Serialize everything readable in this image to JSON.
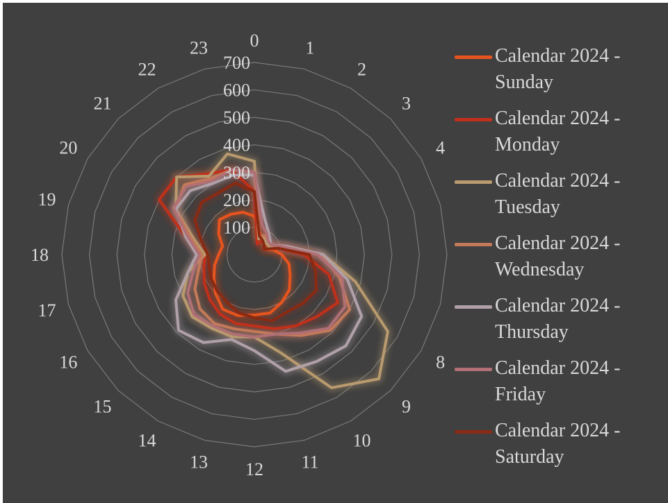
{
  "chart_data": {
    "type": "radar",
    "categories": [
      "0",
      "1",
      "2",
      "3",
      "4",
      "5",
      "6",
      "7",
      "8",
      "9",
      "10",
      "11",
      "12",
      "13",
      "14",
      "15",
      "16",
      "17",
      "18",
      "19",
      "20",
      "21",
      "22",
      "23"
    ],
    "radial_ticks": [
      "100",
      "200",
      "300",
      "400",
      "500",
      "600",
      "700"
    ],
    "rlim": [
      0,
      700
    ],
    "legend_position": "right",
    "series": [
      {
        "name": "Calendar 2024 - Sunday",
        "color": "#e8541e",
        "values": [
          140,
          80,
          60,
          50,
          40,
          70,
          100,
          130,
          150,
          180,
          200,
          220,
          220,
          230,
          230,
          200,
          170,
          150,
          130,
          120,
          150,
          180,
          170,
          160
        ]
      },
      {
        "name": "Calendar 2024 - Monday",
        "color": "#c0301a",
        "values": [
          230,
          40,
          60,
          50,
          60,
          90,
          180,
          280,
          350,
          320,
          300,
          280,
          260,
          260,
          250,
          230,
          210,
          190,
          180,
          260,
          400,
          400,
          340,
          320
        ]
      },
      {
        "name": "Calendar 2024 - Tuesday",
        "color": "#b89a6e",
        "values": [
          340,
          60,
          70,
          60,
          60,
          100,
          250,
          380,
          560,
          640,
          560,
          370,
          300,
          310,
          310,
          320,
          300,
          250,
          180,
          230,
          330,
          400,
          330,
          380
        ]
      },
      {
        "name": "Calendar 2024 - Wednesday",
        "color": "#c47a5a",
        "values": [
          300,
          70,
          80,
          70,
          70,
          110,
          240,
          320,
          400,
          390,
          340,
          300,
          280,
          280,
          290,
          280,
          250,
          210,
          190,
          240,
          330,
          360,
          320,
          320
        ]
      },
      {
        "name": "Calendar 2024 - Thursday",
        "color": "#b0a0a8",
        "values": [
          290,
          140,
          100,
          80,
          70,
          120,
          250,
          350,
          450,
          470,
          450,
          440,
          350,
          320,
          370,
          390,
          330,
          250,
          210,
          260,
          330,
          330,
          300,
          300
        ]
      },
      {
        "name": "Calendar 2024 - Friday",
        "color": "#b07075",
        "values": [
          300,
          110,
          90,
          70,
          70,
          110,
          230,
          330,
          380,
          380,
          330,
          300,
          300,
          300,
          300,
          310,
          280,
          230,
          200,
          250,
          340,
          350,
          310,
          320
        ]
      },
      {
        "name": "Calendar 2024 - Saturday",
        "color": "#8a2a12",
        "values": [
          230,
          70,
          60,
          50,
          40,
          90,
          200,
          230,
          260,
          250,
          240,
          250,
          230,
          220,
          200,
          190,
          180,
          170,
          170,
          200,
          250,
          270,
          260,
          270
        ]
      }
    ]
  }
}
